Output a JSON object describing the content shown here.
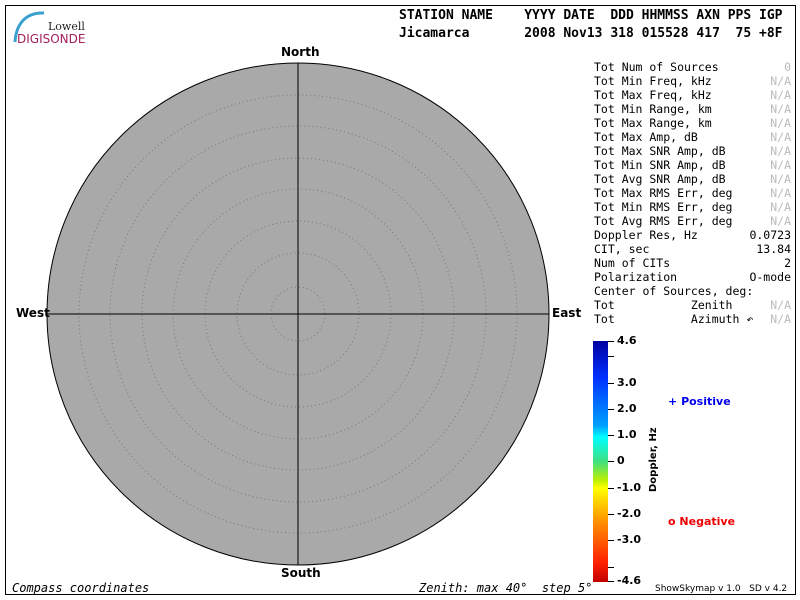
{
  "logo": {
    "line1": "Lowell",
    "line2": "DIGISONDE"
  },
  "header": {
    "labels": "STATION NAME    YYYY DATE  DDD HHMMSS AXN PPS IGP",
    "values": "Jicamarca       2008 Nov13 318 015528 417  75 +8F"
  },
  "directions": {
    "north": "North",
    "south": "South",
    "east": "East",
    "west": "West"
  },
  "stats": [
    {
      "label": "Tot Num of Sources",
      "value": "0",
      "na": true
    },
    {
      "label": "Tot Min Freq, kHz",
      "value": "N/A",
      "na": true
    },
    {
      "label": "Tot Max Freq, kHz",
      "value": "N/A",
      "na": true
    },
    {
      "label": "Tot Min Range, km",
      "value": "N/A",
      "na": true
    },
    {
      "label": "Tot Max Range, km",
      "value": "N/A",
      "na": true
    },
    {
      "label": "Tot Max Amp, dB",
      "value": "N/A",
      "na": true
    },
    {
      "label": "Tot Max SNR Amp, dB",
      "value": "N/A",
      "na": true
    },
    {
      "label": "Tot Min SNR Amp, dB",
      "value": "N/A",
      "na": true
    },
    {
      "label": "Tot Avg SNR Amp, dB",
      "value": "N/A",
      "na": true
    },
    {
      "label": "Tot Max RMS Err, deg",
      "value": "N/A",
      "na": true
    },
    {
      "label": "Tot Min RMS Err, deg",
      "value": "N/A",
      "na": true
    },
    {
      "label": "Tot Avg RMS Err, deg",
      "value": "N/A",
      "na": true
    },
    {
      "label": "Doppler Res, Hz",
      "value": "0.0723",
      "na": false
    },
    {
      "label": "CIT, sec",
      "value": "13.84",
      "na": false
    },
    {
      "label": "Num of CITs",
      "value": "2",
      "na": false
    },
    {
      "label": "Polarization",
      "value": "O-mode",
      "na": false
    },
    {
      "label": "Center of Sources, deg:",
      "value": "",
      "na": false
    },
    {
      "label": "Tot           Zenith",
      "value": "N/A",
      "na": true
    },
    {
      "label": "Tot           Azimuth ↶",
      "value": "N/A",
      "na": true
    }
  ],
  "colorbar": {
    "title": "Doppler, Hz",
    "ticks": [
      "4.6",
      "3.0",
      "2.0",
      "1.0",
      "0",
      "-1.0",
      "-2.0",
      "-3.0",
      "-4.6"
    ]
  },
  "legend": {
    "positive": "Positive",
    "positive_symbol": "+",
    "negative": "Negative",
    "negative_symbol": "o",
    "positive_color": "#0000ee",
    "negative_color": "#ee0000"
  },
  "footer": {
    "left": "Compass coordinates",
    "zenith": "Zenith: max 40°  step 5°",
    "version": "ShowSkymap v 1.0   SD v 4.2"
  }
}
